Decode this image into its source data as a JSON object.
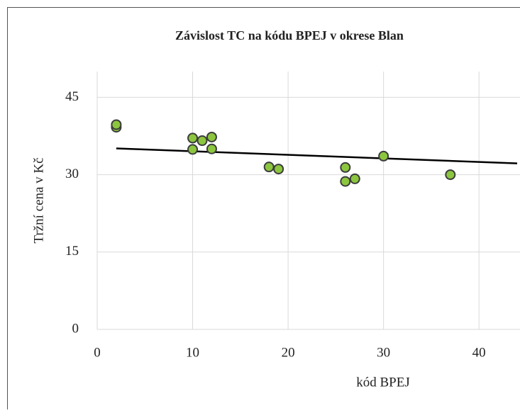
{
  "chart_data": {
    "type": "scatter",
    "title": "Závislost TC na kódu BPEJ v okrese Blan",
    "x_label": "kód BPEJ",
    "y_label": "Tržní cena v Kč",
    "series": [
      {
        "name": "TC",
        "color": "#8cc63f",
        "x": [
          2,
          2,
          10,
          10,
          11,
          12,
          12,
          18,
          19,
          26,
          26,
          27,
          30,
          37
        ],
        "values": [
          39.2,
          39.7,
          37.1,
          34.9,
          36.6,
          37.3,
          35.0,
          31.5,
          31.1,
          31.4,
          28.7,
          29.2,
          33.6,
          30.0
        ]
      }
    ],
    "trendline": {
      "color": "#000000",
      "x": [
        2,
        44
      ],
      "values": [
        35.1,
        32.2
      ]
    },
    "xlim": [
      0,
      44
    ],
    "xticks": [
      0,
      10,
      20,
      30,
      40
    ],
    "ylim": [
      0,
      50
    ],
    "yticks": [
      0,
      15,
      30,
      45
    ],
    "grid": true
  }
}
